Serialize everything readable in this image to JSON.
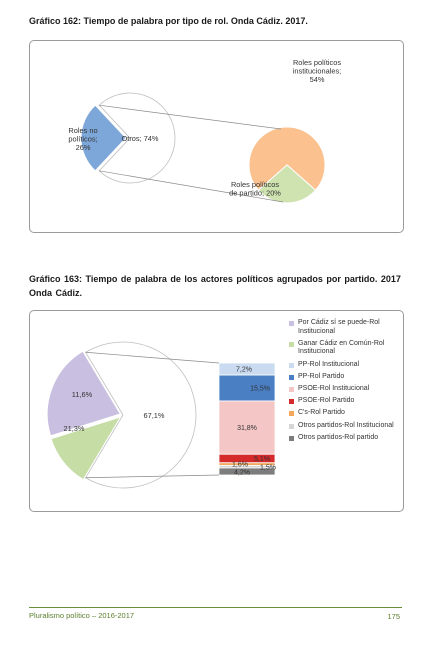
{
  "heading_162": "Gráfico 162: Tiempo de palabra por tipo de rol. Onda Cádiz. 2017.",
  "heading_163": "Gráfico 163: Tiempo de palabra de los actores políticos agrupados por partido. 2017 Onda Cádiz.",
  "footer": {
    "left": "Pluralismo político – 2016-2017",
    "page": "175"
  },
  "colors": {
    "lavender": "#c9bfe0",
    "green": "#c6dda5",
    "light_blue": "#c9daf1",
    "blue": "#4a7fc4",
    "pink": "#f4c6c6",
    "red": "#d42a2a",
    "orange": "#f4a85b",
    "light_gray": "#d6d6d6",
    "dark_gray": "#7d7d7d",
    "peach": "#fbc18f",
    "light_green": "#cfe3b0",
    "steel_blue": "#7da7d9"
  },
  "chart_data": [
    {
      "type": "pie",
      "variant": "pie-of-pie",
      "title": "Gráfico 162: Tiempo de palabra por tipo de rol. Onda Cádiz. 2017.",
      "main_slices": [
        {
          "label": "Roles no políticos; 26%",
          "value": 26,
          "color": "#7da7d9"
        },
        {
          "label": "Otros; 74%",
          "value": 74,
          "color": "#ffffff"
        }
      ],
      "secondary_slices": [
        {
          "label": "Roles políticos institucionales; 54%",
          "value": 54,
          "color": "#fbc18f"
        },
        {
          "label": "Roles políticos de partido; 20%",
          "value": 20,
          "color": "#cfe3b0"
        }
      ]
    },
    {
      "type": "pie",
      "variant": "bar-of-pie",
      "title": "Gráfico 163: Tiempo de palabra de los actores políticos agrupados por partido. 2017 Onda Cádiz.",
      "main_slices": [
        {
          "name": "Otros",
          "value": 67.1,
          "label": "67,1%",
          "color": "#ffffff"
        },
        {
          "name": "Ganar Cádiz en Común",
          "value": 11.6,
          "label": "11,6%",
          "color": "#c6dda5"
        },
        {
          "name": "Por Cádiz sí se puede",
          "value": 21.3,
          "label": "21,3%",
          "color": "#c9bfe0"
        }
      ],
      "bar_segments": [
        {
          "name": "PP-Rol Institucional",
          "value": 7.2,
          "label": "7,2%",
          "color": "#c9daf1"
        },
        {
          "name": "PP-Rol Partido",
          "value": 15.5,
          "label": "15,5%",
          "color": "#4a7fc4"
        },
        {
          "name": "PSOE-Rol Institucional",
          "value": 31.8,
          "label": "31,8%",
          "color": "#f4c6c6"
        },
        {
          "name": "PSOE-Rol Partido",
          "value": 5.1,
          "label": "5,1%",
          "color": "#d42a2a"
        },
        {
          "name": "C's-Rol Partido",
          "value": 1.6,
          "label": "1,6%",
          "color": "#f4a85b"
        },
        {
          "name": "Otros partidos-Rol Institucional",
          "value": 1.5,
          "label": "1,5%",
          "color": "#d6d6d6"
        },
        {
          "name": "Otros partidos-Rol partido",
          "value": 4.2,
          "label": "4,2%",
          "color": "#7d7d7d"
        }
      ],
      "legend": [
        {
          "label": "Por Cádiz sí se puede-Rol Institucional",
          "color": "#c9bfe0"
        },
        {
          "label": "Ganar Cádiz en Común-Rol Institucional",
          "color": "#c6dda5"
        },
        {
          "label": "PP-Rol Institucional",
          "color": "#c9daf1"
        },
        {
          "label": "PP-Rol Partido",
          "color": "#4a7fc4"
        },
        {
          "label": "PSOE-Rol Institucional",
          "color": "#f4c6c6"
        },
        {
          "label": "PSOE-Rol Partido",
          "color": "#d42a2a"
        },
        {
          "label": "C's-Rol Partido",
          "color": "#f4a85b"
        },
        {
          "label": "Otros partidos-Rol Institucional",
          "color": "#d6d6d6"
        },
        {
          "label": "Otros partidos-Rol partido",
          "color": "#7d7d7d"
        }
      ],
      "legend_position": "right"
    }
  ]
}
